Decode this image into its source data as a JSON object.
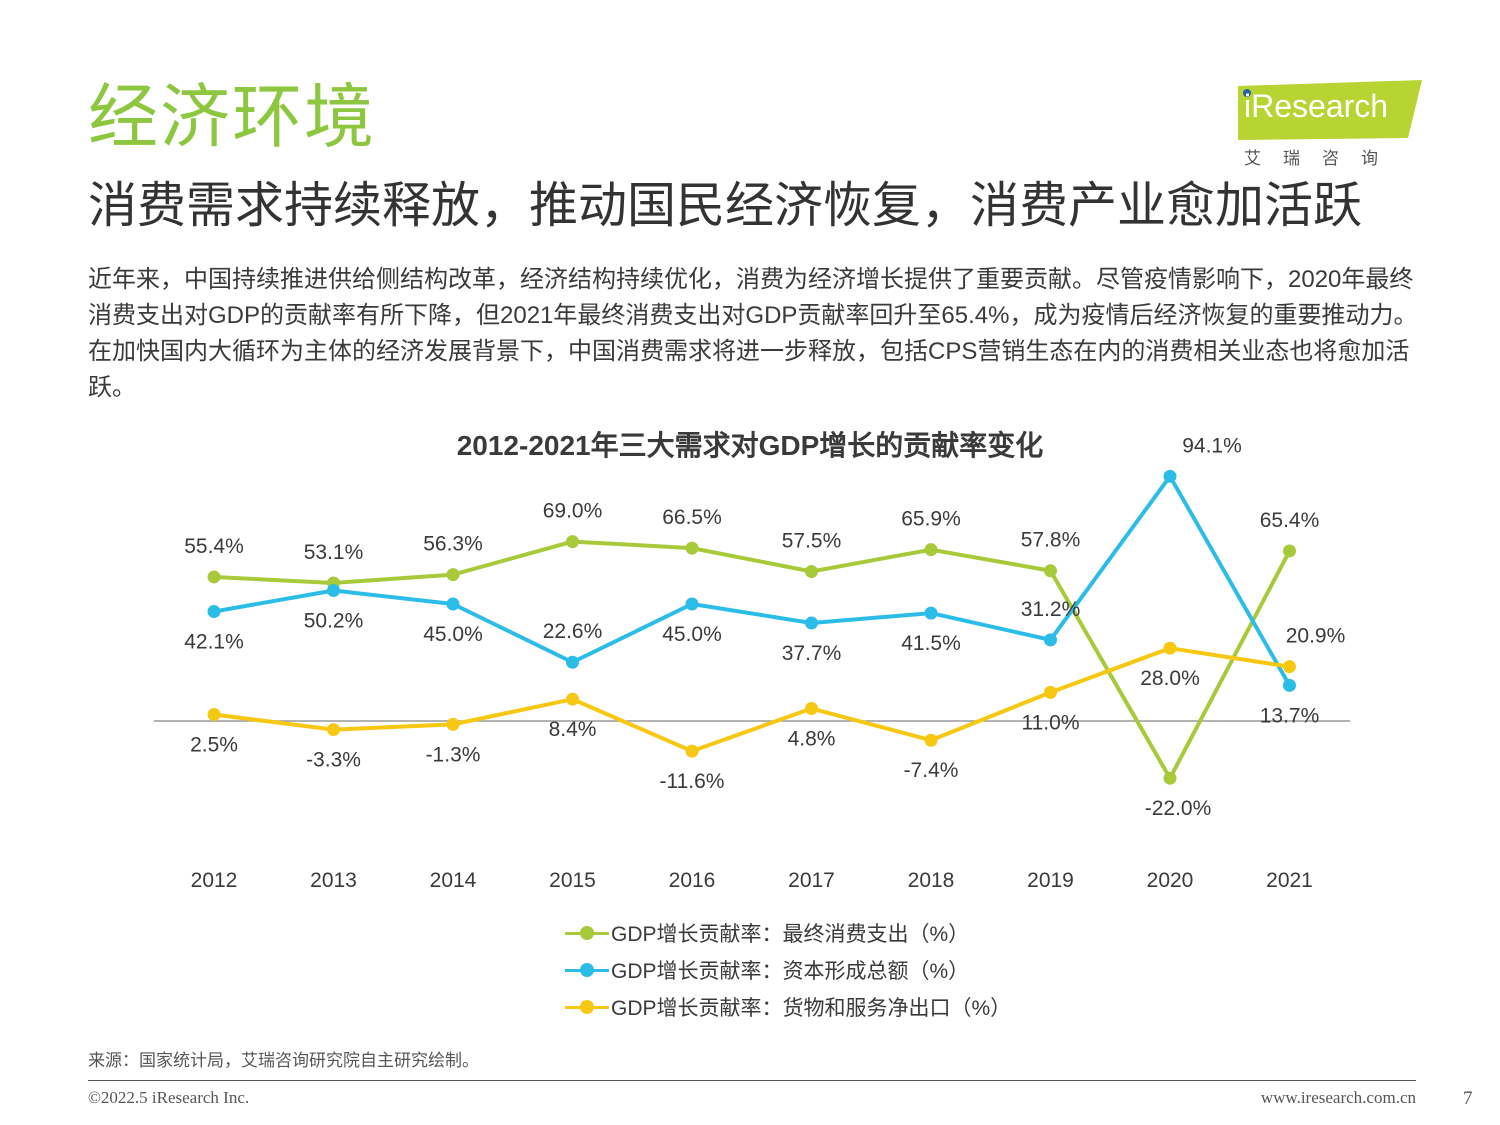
{
  "header": {
    "section_title": "经济环境",
    "subtitle": "消费需求持续释放，推动国民经济恢复，消费产业愈加活跃",
    "intro": "近年来，中国持续推进供给侧结构改革，经济结构持续优化，消费为经济增长提供了重要贡献。尽管疫情影响下，2020年最终消费支出对GDP的贡献率有所下降，但2021年最终消费支出对GDP贡献率回升至65.4%，成为疫情后经济恢复的重要推动力。在加快国内大循环为主体的经济发展背景下，中国消费需求将进一步释放，包括CPS营销生态在内的消费相关业态也将愈加活跃。"
  },
  "logo": {
    "brand": "iResearch",
    "cn": "艾瑞咨询",
    "color": "#b8d432"
  },
  "chart_data": {
    "type": "line",
    "title": "2012-2021年三大需求对GDP增长的贡献率变化",
    "categories": [
      "2012",
      "2013",
      "2014",
      "2015",
      "2016",
      "2017",
      "2018",
      "2019",
      "2020",
      "2021"
    ],
    "series": [
      {
        "name": "GDP增长贡献率：最终消费支出（%）",
        "color": "#a8c93a",
        "values": [
          55.4,
          53.1,
          56.3,
          69.0,
          66.5,
          57.5,
          65.9,
          57.8,
          -22.0,
          65.4
        ],
        "labels": [
          "55.4%",
          "53.1%",
          "56.3%",
          "69.0%",
          "66.5%",
          "57.5%",
          "65.9%",
          "57.8%",
          "-22.0%",
          "65.4%"
        ]
      },
      {
        "name": "GDP增长贡献率：资本形成总额（%）",
        "color": "#2bbde8",
        "values": [
          42.1,
          50.2,
          45.0,
          22.6,
          45.0,
          37.7,
          41.5,
          31.2,
          94.1,
          13.7
        ],
        "labels": [
          "42.1%",
          "50.2%",
          "45.0%",
          "22.6%",
          "45.0%",
          "37.7%",
          "41.5%",
          "31.2%",
          "94.1%",
          "13.7%"
        ]
      },
      {
        "name": "GDP增长贡献率：货物和服务净出口（%）",
        "color": "#f7c812",
        "values": [
          2.5,
          -3.3,
          -1.3,
          8.4,
          -11.6,
          4.8,
          -7.4,
          11.0,
          28.0,
          20.9
        ],
        "labels": [
          "2.5%",
          "-3.3%",
          "-1.3%",
          "8.4%",
          "-11.6%",
          "4.8%",
          "-7.4%",
          "11.0%",
          "28.0%",
          "20.9%"
        ]
      }
    ],
    "ylim": [
      -40,
      100
    ],
    "grid": false,
    "zero_line": true,
    "legend_position": "bottom"
  },
  "footer": {
    "source": "来源：国家统计局，艾瑞咨询研究院自主研究绘制。",
    "copyright": "©2022.5 iResearch Inc.",
    "website": "www.iresearch.com.cn",
    "page_number": "7"
  }
}
